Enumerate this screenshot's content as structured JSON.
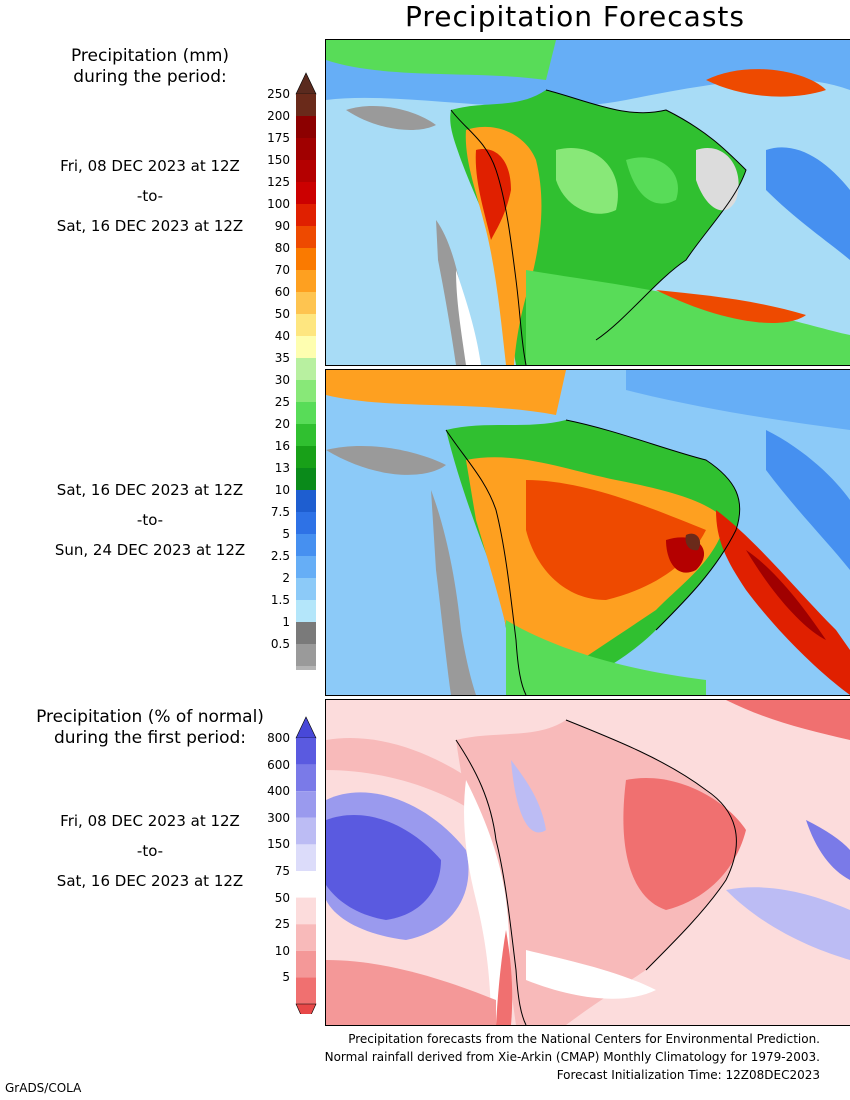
{
  "title": "Precipitation Forecasts",
  "legend_top": {
    "title_line1": "Precipitation (mm)",
    "title_line2": "during the period:",
    "ticks": [
      "250",
      "200",
      "175",
      "150",
      "125",
      "100",
      "90",
      "80",
      "70",
      "60",
      "50",
      "40",
      "35",
      "30",
      "25",
      "20",
      "16",
      "13",
      "10",
      "7.5",
      "5",
      "2.5",
      "2",
      "1.5",
      "1",
      "0.5"
    ],
    "colors": [
      "#6a2a1a",
      "#8c0000",
      "#a00000",
      "#b40000",
      "#cc0000",
      "#e02000",
      "#ee4a00",
      "#fa7a00",
      "#fea020",
      "#fec450",
      "#fee680",
      "#fefeb0",
      "#b8f0a0",
      "#88e878",
      "#58dc58",
      "#30c030",
      "#18a018",
      "#0a8a1a",
      "#1e5ed0",
      "#2e72e6",
      "#4690f0",
      "#66aef6",
      "#8ccaf8",
      "#b4e6fa",
      "#7a7a7a",
      "#9a9a9a",
      "#b4b4b4",
      "#cacaca",
      "#ffffff"
    ],
    "top_arrow_color": "#5a2a1e"
  },
  "legend_bottom": {
    "title_line1": "Precipitation (% of normal)",
    "title_line2": "during the first period:",
    "ticks": [
      "800",
      "600",
      "400",
      "300",
      "150",
      "75",
      "50",
      "25",
      "10",
      "5"
    ],
    "colors": [
      "#5a5ae0",
      "#7a7ae8",
      "#9a9aee",
      "#bcbcf4",
      "#dcdcfa",
      "#ffffff",
      "#fcdcdc",
      "#f8baba",
      "#f49898",
      "#f07070"
    ],
    "top_arrow_color": "#4848d8",
    "bottom_arrow_color": "#e84848"
  },
  "periods": [
    {
      "from": "Fri, 08 DEC 2023 at 12Z",
      "sep": "-to-",
      "to": "Sat, 16 DEC 2023 at 12Z"
    },
    {
      "from": "Sat, 16 DEC 2023 at 12Z",
      "sep": "-to-",
      "to": "Sun, 24 DEC 2023 at 12Z"
    },
    {
      "from": "Fri, 08 DEC 2023 at 12Z",
      "sep": "-to-",
      "to": "Sat, 16 DEC 2023 at 12Z"
    }
  ],
  "footer": {
    "line1": "Precipitation forecasts from the National Centers for Environmental Prediction.",
    "line2": "Normal rainfall derived from Xie-Arkin (CMAP) Monthly Climatology for 1979-2003.",
    "line3": "Forecast Initialization Time: 12Z08DEC2023"
  },
  "credit": "GrADS/COLA"
}
